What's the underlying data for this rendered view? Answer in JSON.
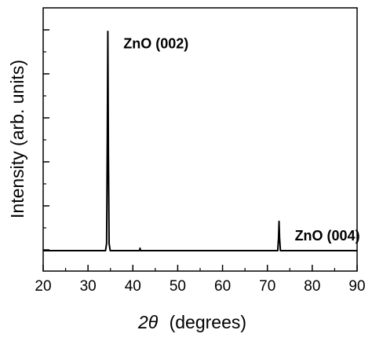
{
  "chart_data": {
    "type": "line",
    "title": "",
    "xlabel": "(degrees)",
    "xlabel_symbol": "2θ",
    "ylabel": "Intensity (arb. units)",
    "xlim": [
      20,
      90
    ],
    "ylim": [
      0,
      1
    ],
    "grid": false,
    "y_ticks_labeled": false,
    "x_ticks": [
      20,
      30,
      40,
      50,
      60,
      70,
      80,
      90
    ],
    "x_tick_labels": [
      "20",
      "30",
      "40",
      "50",
      "60",
      "70",
      "80",
      "90"
    ],
    "line_color": "#000000",
    "annotations": [
      {
        "text": "ZnO (002)",
        "x": 34.4,
        "y": 0.97
      },
      {
        "text": "ZnO (004)",
        "x": 72.6,
        "y": 0.18
      }
    ],
    "series": [
      {
        "x": [
          20,
          33.9,
          34.15,
          34.3,
          34.42,
          34.55,
          34.7,
          34.95,
          41.5,
          41.6,
          41.7,
          72.3,
          72.48,
          72.6,
          72.72,
          72.9,
          90
        ],
        "y": [
          0.1,
          0.1,
          0.13,
          0.55,
          1.0,
          0.5,
          0.13,
          0.1,
          0.1,
          0.11,
          0.1,
          0.1,
          0.15,
          0.22,
          0.15,
          0.1,
          0.1
        ]
      }
    ]
  }
}
